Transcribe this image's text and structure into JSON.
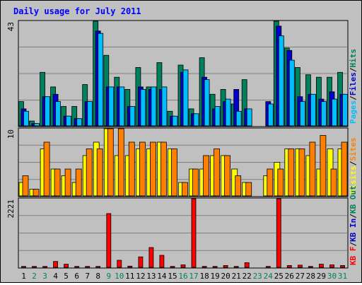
{
  "chart_data": {
    "type": "bar",
    "title": "Daily usage for July 2011",
    "days": [
      "1",
      "2",
      "3",
      "4",
      "5",
      "6",
      "7",
      "8",
      "9",
      "10",
      "11",
      "12",
      "13",
      "14",
      "15",
      "16",
      "17",
      "18",
      "19",
      "20",
      "21",
      "22",
      "23",
      "24",
      "25",
      "26",
      "27",
      "28",
      "29",
      "30",
      "31"
    ],
    "weekend_days": [
      "2",
      "3",
      "9",
      "10",
      "16",
      "17",
      "23",
      "24",
      "30",
      "31"
    ],
    "panels": [
      {
        "id": "hits",
        "axis_max_label": "43",
        "ylim": [
          0,
          43
        ],
        "series": [
          {
            "name": "Hits",
            "color": "#00805c",
            "values": [
              10,
              2,
              22,
              16,
              8,
              8,
              17,
              43,
              29,
              20,
              15,
              24,
              16,
              26,
              6,
              25,
              7,
              28,
              13,
              15,
              9,
              19,
              0,
              0,
              43,
              32,
              24,
              21,
              20,
              20,
              22
            ]
          },
          {
            "name": "Files",
            "color": "#0000d0",
            "values": [
              7,
              1,
              12,
              13,
              4,
              3,
              10,
              39,
              16,
              16,
              8,
              16,
              15,
              15,
              4,
              22,
              5,
              20,
              7,
              10,
              15,
              7,
              0,
              10,
              41,
              31,
              12,
              13,
              11,
              14,
              13
            ]
          },
          {
            "name": "Pages",
            "color": "#00bfff",
            "values": [
              6,
              1,
              12,
              10,
              4,
              3,
              10,
              38,
              16,
              16,
              8,
              15,
              16,
              16,
              4,
              23,
              5,
              19,
              8,
              11,
              6,
              7,
              0,
              9,
              37,
              27,
              10,
              13,
              10,
              11,
              13
            ]
          }
        ],
        "legend": [
          "Pages",
          "Files",
          "Hits"
        ]
      },
      {
        "id": "sites",
        "axis_max_label": "10",
        "ylim": [
          0,
          10
        ],
        "series": [
          {
            "name": "Visits",
            "color": "#ffff00",
            "values": [
              2,
              1,
              7,
              4,
              3,
              2,
              6,
              8,
              10,
              6,
              6,
              7,
              7,
              8,
              7,
              2,
              4,
              4,
              6,
              6,
              4,
              2,
              0,
              3,
              5,
              7,
              7,
              6,
              4,
              7,
              7
            ]
          },
          {
            "name": "Sites",
            "color": "#ff8000",
            "values": [
              3,
              1,
              8,
              4,
              4,
              4,
              7,
              7,
              10,
              10,
              8,
              8,
              8,
              8,
              7,
              2,
              4,
              6,
              7,
              6,
              3,
              2,
              0,
              4,
              4,
              7,
              7,
              8,
              9,
              4,
              8
            ]
          }
        ],
        "legend": [
          "Visits",
          "Sites"
        ]
      },
      {
        "id": "kbytes",
        "axis_max_label": "2221",
        "ylim": [
          0,
          2221
        ],
        "series": [
          {
            "name": "KB F",
            "color": "#ff0000",
            "values": [
              30,
              30,
              30,
              190,
              100,
              30,
              30,
              30,
              1740,
              230,
              40,
              340,
              640,
              390,
              30,
              80,
              2221,
              30,
              30,
              60,
              30,
              150,
              0,
              30,
              2221,
              60,
              70,
              30,
              100,
              80,
              60
            ]
          }
        ],
        "legend": [
          "KB F",
          "KB In",
          "KB Out"
        ],
        "legend_colors": [
          "#ff0000",
          "#0000d0",
          "#00805c"
        ]
      }
    ],
    "legend_separator": "/"
  },
  "colors": {
    "background": "#c0c0c0",
    "plot_background": "#c0c0c0",
    "gridline": "#808080",
    "title": "#0000ff",
    "weekday_label": "#000000",
    "weekend_label": "#00805c",
    "bar_outline": "#000000",
    "legend_separator": "#000000"
  }
}
